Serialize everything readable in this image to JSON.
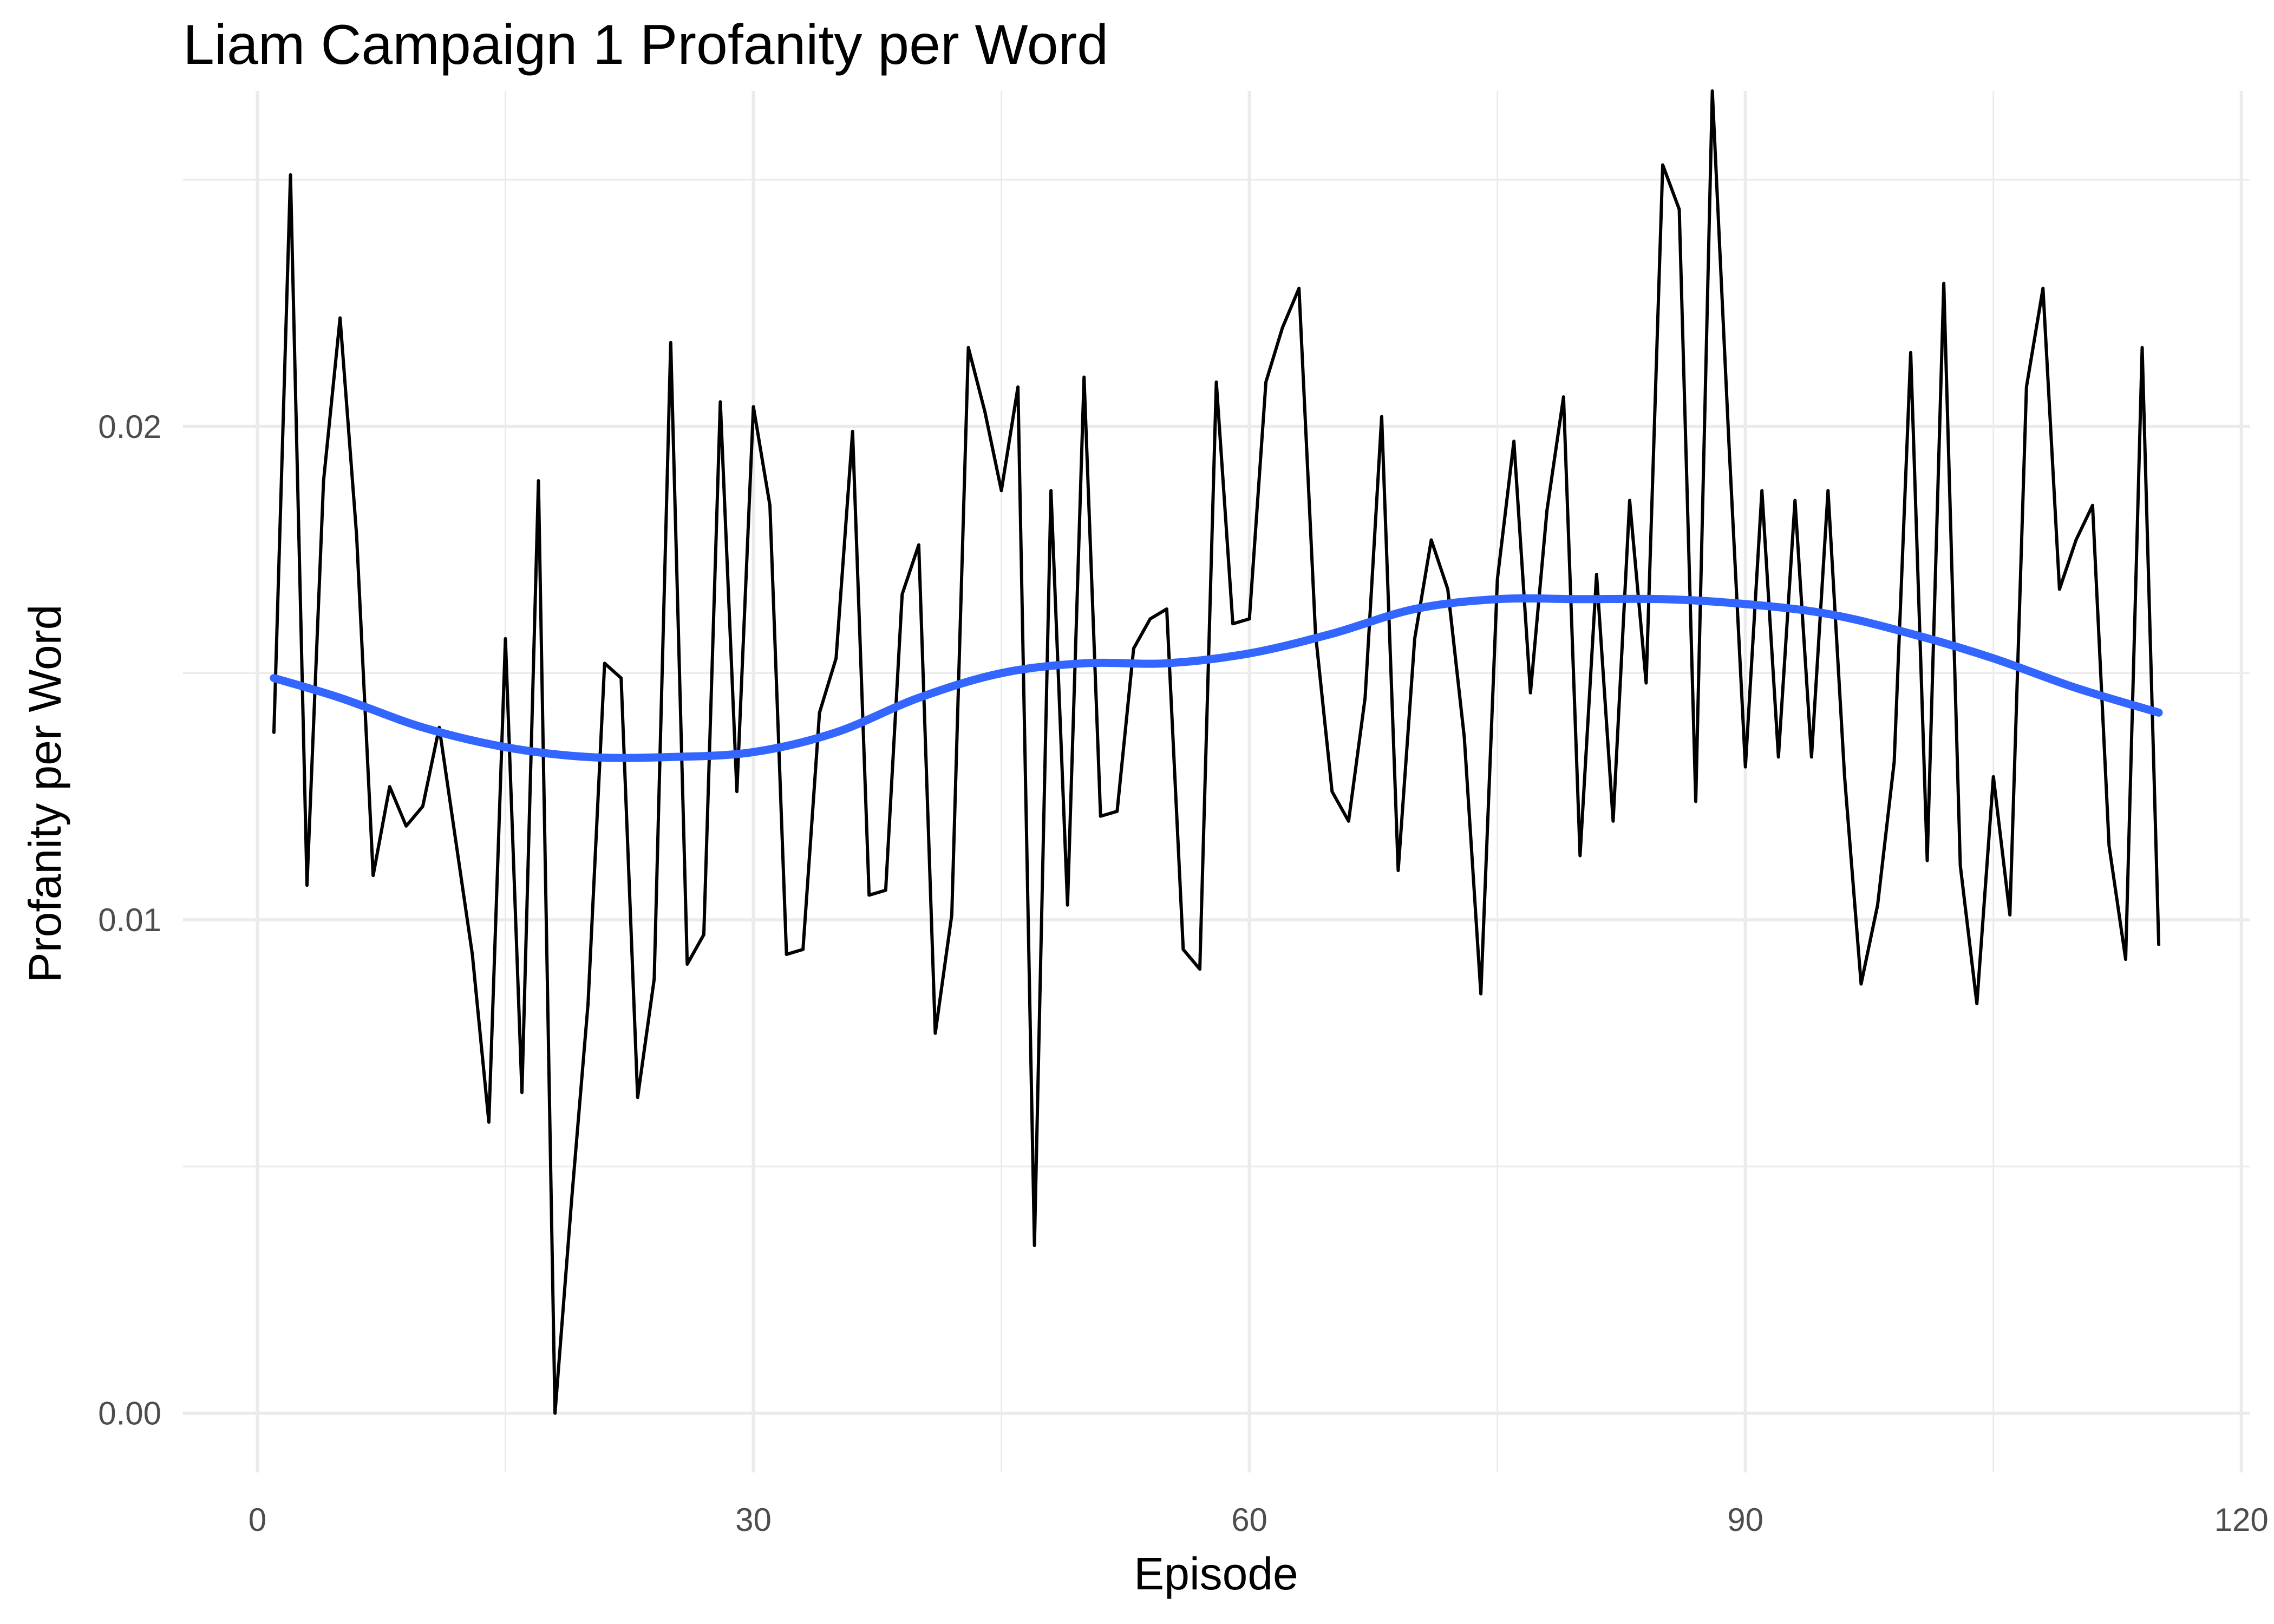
{
  "chart_data": {
    "type": "line",
    "title": "Liam Campaign 1 Profanity per Word",
    "xlabel": "Episode",
    "ylabel": "Profanity per Word",
    "xlim": [
      -4.5,
      120.5
    ],
    "ylim": [
      -0.0012,
      0.0268
    ],
    "x_ticks": [
      0,
      30,
      60,
      90,
      120
    ],
    "x_tick_labels": [
      "0",
      "30",
      "60",
      "90",
      "120"
    ],
    "x_minor_ticks": [
      15,
      45,
      75,
      105
    ],
    "y_ticks": [
      0.0,
      0.01,
      0.02
    ],
    "y_tick_labels": [
      "0.00",
      "0.01",
      "0.02"
    ],
    "y_minor_ticks": [
      0.005,
      0.015,
      0.025
    ],
    "grid": true,
    "legend": "none",
    "series": [
      {
        "kind": "raw",
        "color": "#000000",
        "x": [
          1,
          2,
          3,
          4,
          5,
          6,
          7,
          8,
          9,
          10,
          11,
          12,
          13,
          14,
          15,
          16,
          17,
          18,
          19,
          20,
          21,
          22,
          23,
          24,
          25,
          26,
          27,
          28,
          29,
          30,
          31,
          32,
          33,
          34,
          35,
          36,
          37,
          38,
          39,
          40,
          41,
          42,
          43,
          44,
          45,
          46,
          47,
          48,
          49,
          50,
          51,
          52,
          53,
          54,
          55,
          56,
          57,
          58,
          59,
          60,
          61,
          62,
          63,
          64,
          65,
          66,
          67,
          68,
          69,
          70,
          71,
          72,
          73,
          74,
          75,
          76,
          77,
          78,
          79,
          80,
          81,
          82,
          83,
          84,
          85,
          86,
          87,
          88,
          89,
          90,
          91,
          92,
          93,
          94,
          95,
          96,
          97,
          98,
          99,
          100,
          101,
          102,
          103,
          104,
          105,
          106,
          107,
          108,
          109,
          110,
          111,
          112,
          113,
          114,
          115
        ],
        "values": [
          0.0138,
          0.0251,
          0.0107,
          0.0189,
          0.0222,
          0.0178,
          0.0109,
          0.0127,
          0.0119,
          0.0123,
          0.0139,
          0.0116,
          0.0093,
          0.0059,
          0.0157,
          0.0065,
          0.0189,
          0.0,
          0.0043,
          0.0083,
          0.0152,
          0.0149,
          0.0064,
          0.0088,
          0.0217,
          0.0091,
          0.0097,
          0.0205,
          0.0126,
          0.0204,
          0.0184,
          0.0093,
          0.0094,
          0.0142,
          0.0153,
          0.0199,
          0.0105,
          0.0106,
          0.0166,
          0.0176,
          0.0077,
          0.0101,
          0.0216,
          0.0203,
          0.0187,
          0.0208,
          0.0034,
          0.0187,
          0.0103,
          0.021,
          0.0121,
          0.0122,
          0.0155,
          0.0161,
          0.0163,
          0.0094,
          0.009,
          0.0209,
          0.016,
          0.0161,
          0.0209,
          0.022,
          0.0228,
          0.0158,
          0.0126,
          0.012,
          0.0145,
          0.0202,
          0.011,
          0.0157,
          0.0177,
          0.0167,
          0.0137,
          0.0085,
          0.0169,
          0.0197,
          0.0146,
          0.0183,
          0.0206,
          0.0113,
          0.017,
          0.012,
          0.0185,
          0.0148,
          0.0253,
          0.0244,
          0.0124,
          0.0268,
          0.0197,
          0.0131,
          0.0187,
          0.0133,
          0.0185,
          0.0133,
          0.0187,
          0.0129,
          0.0087,
          0.0103,
          0.0132,
          0.0215,
          0.0112,
          0.0229,
          0.0111,
          0.0083,
          0.0129,
          0.0101,
          0.0208,
          0.0228,
          0.0167,
          0.0177,
          0.0184,
          0.0115,
          0.0092,
          0.0216,
          0.0095
        ]
      },
      {
        "kind": "smooth",
        "color": "#3366ff",
        "x": [
          1,
          5,
          10,
          15,
          20,
          25,
          30,
          35,
          40,
          45,
          50,
          55,
          60,
          65,
          70,
          75,
          80,
          85,
          90,
          95,
          100,
          105,
          110,
          115
        ],
        "values": [
          0.0149,
          0.0145,
          0.0139,
          0.0135,
          0.0133,
          0.0133,
          0.0134,
          0.0138,
          0.0145,
          0.015,
          0.0152,
          0.0152,
          0.0154,
          0.0158,
          0.0163,
          0.0165,
          0.0165,
          0.0165,
          0.0164,
          0.0162,
          0.0158,
          0.0153,
          0.0147,
          0.0142
        ]
      }
    ]
  }
}
